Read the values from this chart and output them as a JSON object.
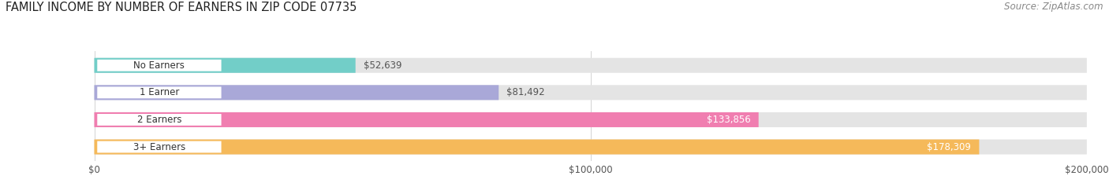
{
  "title": "FAMILY INCOME BY NUMBER OF EARNERS IN ZIP CODE 07735",
  "source": "Source: ZipAtlas.com",
  "categories": [
    "No Earners",
    "1 Earner",
    "2 Earners",
    "3+ Earners"
  ],
  "values": [
    52639,
    81492,
    133856,
    178309
  ],
  "value_labels": [
    "$52,639",
    "$81,492",
    "$133,856",
    "$178,309"
  ],
  "bar_colors": [
    "#72CEC8",
    "#A9A8D8",
    "#F07EB0",
    "#F5B95A"
  ],
  "xmax": 200000,
  "xtick_labels": [
    "$0",
    "$100,000",
    "$200,000"
  ],
  "background_color": "#FFFFFF",
  "bar_background": "#E4E4E4",
  "title_fontsize": 10.5,
  "source_fontsize": 8.5,
  "label_fontsize": 8.5,
  "value_fontsize": 8.5,
  "value_inside_threshold": 0.55
}
